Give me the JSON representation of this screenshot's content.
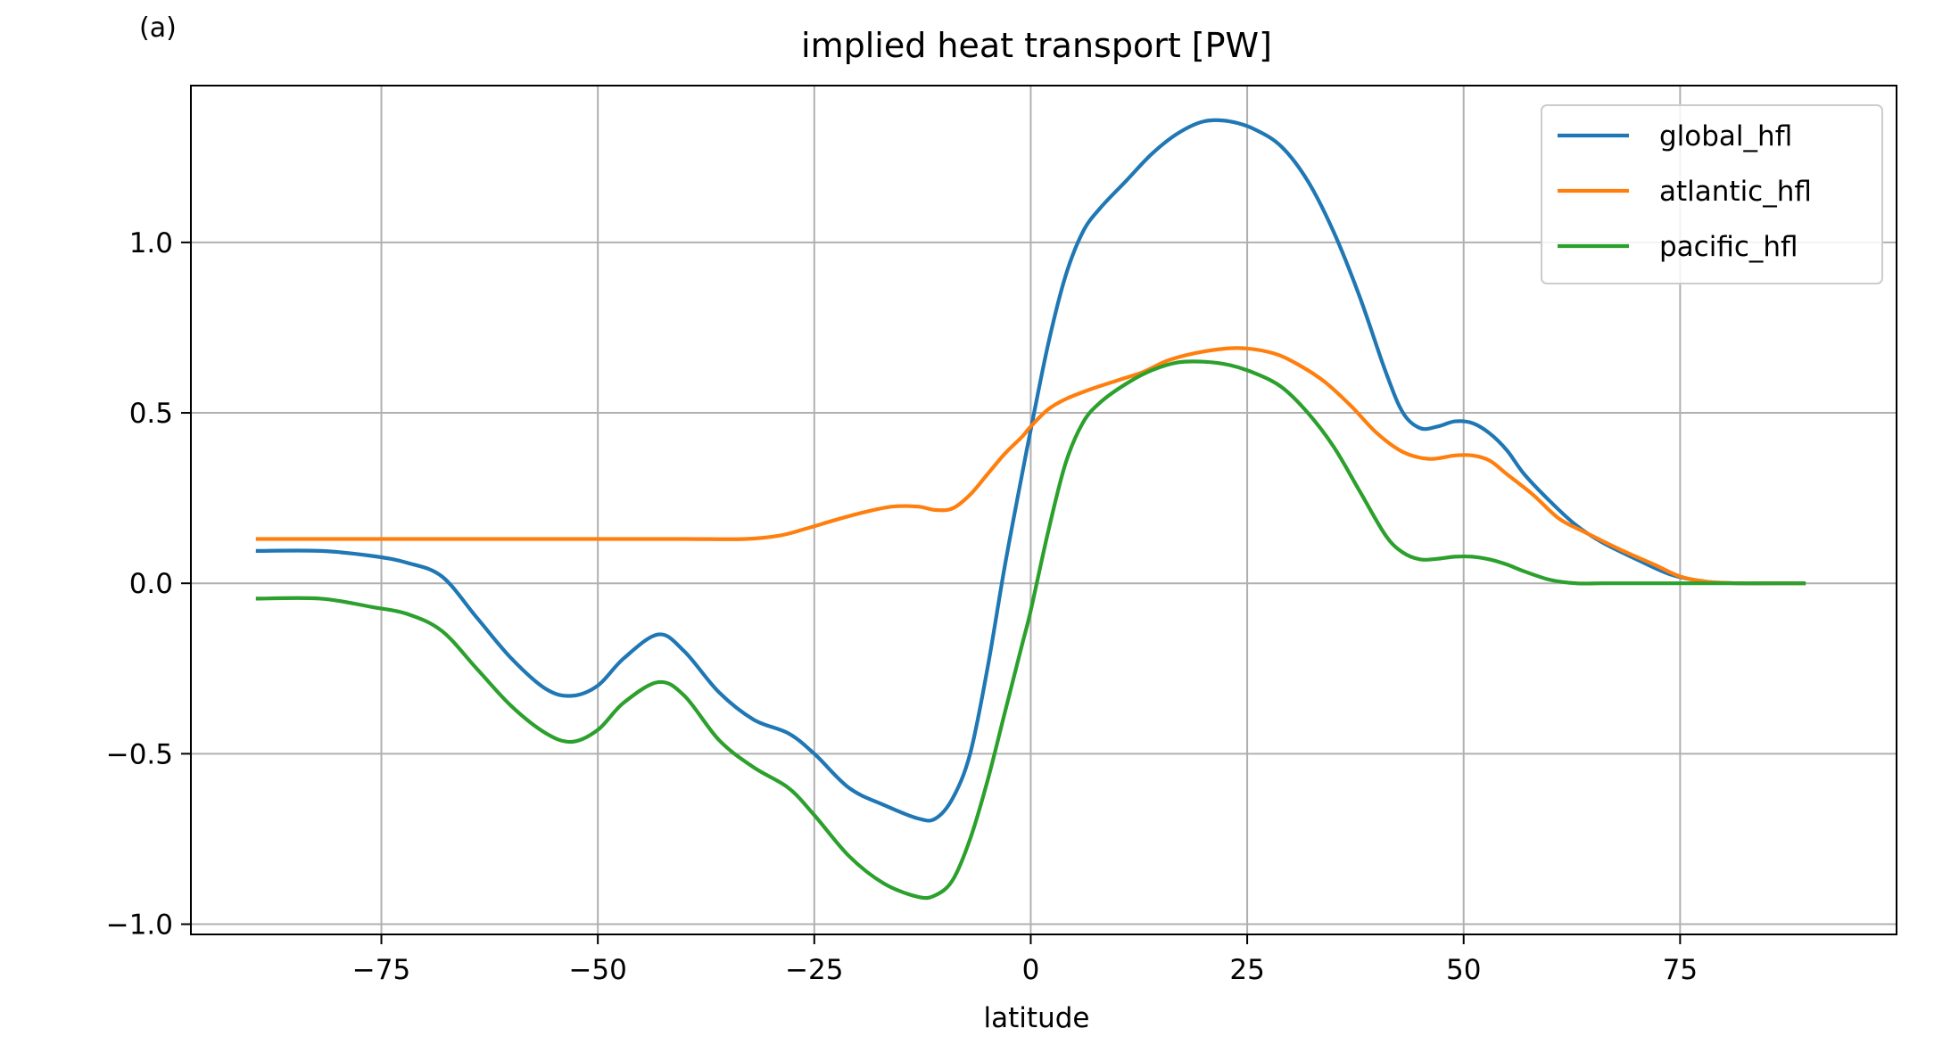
{
  "panel_label": "(a)",
  "chart_data": {
    "type": "line",
    "title": "implied heat transport [PW]",
    "xlabel": "latitude",
    "ylabel": "",
    "xlim": [
      -97,
      100
    ],
    "ylim": [
      -1.03,
      1.46
    ],
    "xticks": [
      -75,
      -50,
      -25,
      0,
      25,
      50,
      75
    ],
    "xtick_labels": [
      "−75",
      "−50",
      "−25",
      "0",
      "25",
      "50",
      "75"
    ],
    "yticks": [
      -1.0,
      -0.5,
      0.0,
      0.5,
      1.0
    ],
    "ytick_labels": [
      "−1.0",
      "−0.5",
      "0.0",
      "0.5",
      "1.0"
    ],
    "grid": true,
    "legend_position": "top-right",
    "series": [
      {
        "name": "global_hfl",
        "color": "#1f77b4",
        "x": [
          -89.5,
          -82,
          -76,
          -72,
          -68,
          -64,
          -60,
          -56,
          -53,
          -50,
          -47,
          -43,
          -40,
          -36,
          -32,
          -28,
          -25,
          -21,
          -17,
          -13,
          -11,
          -9,
          -7,
          -5,
          -3,
          -1,
          0,
          2,
          4,
          6,
          8,
          11,
          14,
          17,
          20,
          23,
          26,
          29,
          32,
          35,
          38,
          41,
          43,
          45,
          47,
          49,
          51,
          53,
          55,
          57,
          60,
          63,
          66,
          70,
          74,
          78,
          82,
          86,
          89.5
        ],
        "y": [
          0.095,
          0.095,
          0.08,
          0.06,
          0.02,
          -0.1,
          -0.22,
          -0.31,
          -0.33,
          -0.3,
          -0.22,
          -0.15,
          -0.2,
          -0.32,
          -0.4,
          -0.44,
          -0.5,
          -0.6,
          -0.65,
          -0.69,
          -0.69,
          -0.63,
          -0.5,
          -0.25,
          0.05,
          0.32,
          0.45,
          0.7,
          0.9,
          1.03,
          1.1,
          1.18,
          1.26,
          1.32,
          1.355,
          1.355,
          1.33,
          1.28,
          1.18,
          1.03,
          0.84,
          0.62,
          0.5,
          0.455,
          0.46,
          0.475,
          0.47,
          0.44,
          0.39,
          0.32,
          0.24,
          0.17,
          0.12,
          0.07,
          0.025,
          0.005,
          0.0,
          0.0,
          0.0
        ]
      },
      {
        "name": "atlantic_hfl",
        "color": "#ff7f0e",
        "x": [
          -89.5,
          -80,
          -70,
          -60,
          -50,
          -40,
          -33,
          -29,
          -26,
          -22,
          -19,
          -16,
          -13,
          -11,
          -9,
          -7,
          -5,
          -3,
          -1,
          0,
          2,
          4,
          7,
          10,
          13,
          16,
          20,
          24,
          28,
          31,
          34,
          37,
          40,
          43,
          46,
          49,
          51,
          53,
          55,
          58,
          61,
          64,
          68,
          72,
          75,
          78,
          82,
          86,
          89.5
        ],
        "y": [
          0.13,
          0.13,
          0.13,
          0.13,
          0.13,
          0.13,
          0.13,
          0.14,
          0.16,
          0.19,
          0.21,
          0.225,
          0.225,
          0.215,
          0.22,
          0.26,
          0.32,
          0.38,
          0.43,
          0.46,
          0.51,
          0.54,
          0.57,
          0.595,
          0.62,
          0.655,
          0.68,
          0.69,
          0.675,
          0.64,
          0.59,
          0.52,
          0.44,
          0.385,
          0.365,
          0.375,
          0.375,
          0.36,
          0.32,
          0.26,
          0.19,
          0.15,
          0.1,
          0.055,
          0.02,
          0.005,
          0.0,
          0.0,
          0.0
        ]
      },
      {
        "name": "pacific_hfl",
        "color": "#2ca02c",
        "x": [
          -89.5,
          -82,
          -76,
          -72,
          -68,
          -64,
          -60,
          -56,
          -53,
          -50,
          -47,
          -43,
          -40,
          -36,
          -32,
          -28,
          -25,
          -21,
          -17,
          -13,
          -11,
          -9,
          -7,
          -5,
          -3,
          -1,
          0,
          2,
          4,
          6,
          8,
          11,
          14,
          17,
          20,
          23,
          26,
          29,
          32,
          35,
          38,
          41,
          43,
          45,
          47,
          49,
          51,
          53,
          55,
          57,
          60,
          63,
          66,
          70,
          74,
          78,
          82,
          86,
          89.5
        ],
        "y": [
          -0.045,
          -0.045,
          -0.07,
          -0.09,
          -0.14,
          -0.25,
          -0.36,
          -0.44,
          -0.465,
          -0.43,
          -0.35,
          -0.29,
          -0.33,
          -0.46,
          -0.54,
          -0.6,
          -0.68,
          -0.8,
          -0.88,
          -0.92,
          -0.915,
          -0.87,
          -0.75,
          -0.58,
          -0.38,
          -0.18,
          -0.08,
          0.15,
          0.35,
          0.47,
          0.53,
          0.585,
          0.625,
          0.648,
          0.65,
          0.64,
          0.615,
          0.575,
          0.5,
          0.4,
          0.27,
          0.14,
          0.09,
          0.07,
          0.072,
          0.078,
          0.078,
          0.07,
          0.055,
          0.035,
          0.01,
          0.0,
          0.0,
          0.0,
          0.0,
          0.0,
          0.0,
          0.0,
          0.0
        ]
      }
    ]
  }
}
